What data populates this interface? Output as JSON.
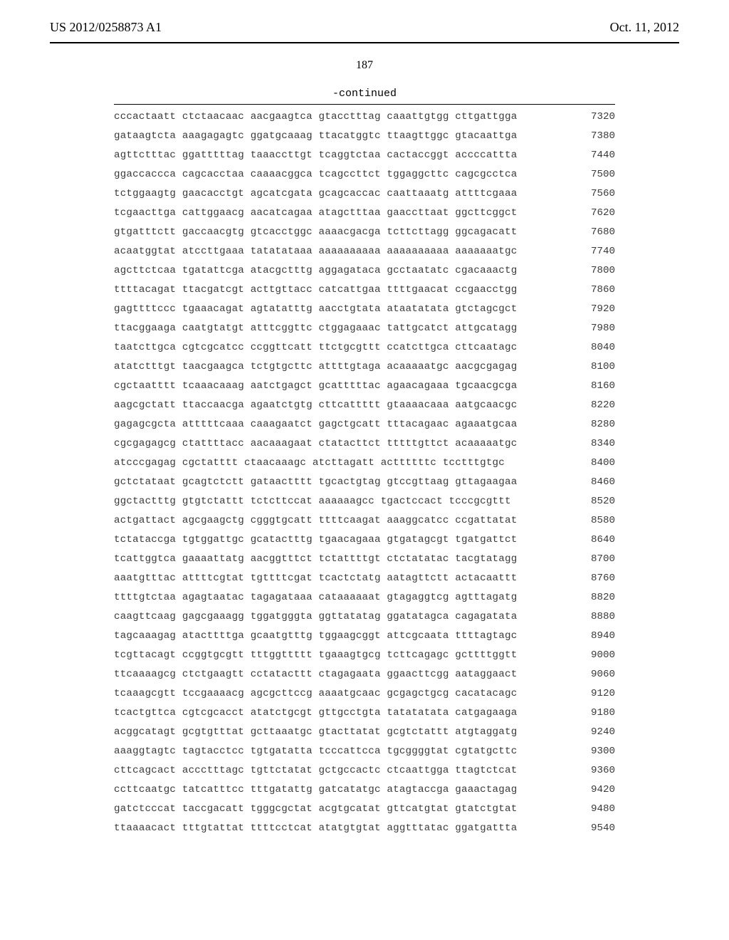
{
  "header": {
    "pub_number": "US 2012/0258873 A1",
    "pub_date": "Oct. 11, 2012"
  },
  "page_number": "187",
  "continued_label": "-continued",
  "sequence": {
    "font_family": "Courier New",
    "font_size_pt": 11,
    "text_color": "#3a3a3a",
    "rule_color": "#000000",
    "rows": [
      {
        "seq": "cccactaatt ctctaacaac aacgaagtca gtacctttag caaattgtgg cttgattgga",
        "pos": 7320
      },
      {
        "seq": "gataagtcta aaagagagtc ggatgcaaag ttacatggtc ttaagttggc gtacaattga",
        "pos": 7380
      },
      {
        "seq": "agttctttac ggatttttag taaaccttgt tcaggtctaa cactaccggt accccattta",
        "pos": 7440
      },
      {
        "seq": "ggaccaccca cagcacctaa caaaacggca tcagccttct tggaggcttc cagcgcctca",
        "pos": 7500
      },
      {
        "seq": "tctggaagtg gaacacctgt agcatcgata gcagcaccac caattaaatg attttcgaaa",
        "pos": 7560
      },
      {
        "seq": "tcgaacttga cattggaacg aacatcagaa atagctttaa gaaccttaat ggcttcggct",
        "pos": 7620
      },
      {
        "seq": "gtgatttctt gaccaacgtg gtcacctggc aaaacgacga tcttcttagg ggcagacatt",
        "pos": 7680
      },
      {
        "seq": "acaatggtat atccttgaaa tatatataaa aaaaaaaaaa aaaaaaaaaa aaaaaaatgc",
        "pos": 7740
      },
      {
        "seq": "agcttctcaa tgatattcga atacgctttg aggagataca gcctaatatc cgacaaactg",
        "pos": 7800
      },
      {
        "seq": "ttttacagat ttacgatcgt acttgttacc catcattgaa ttttgaacat ccgaacctgg",
        "pos": 7860
      },
      {
        "seq": "gagttttccc tgaaacagat agtatatttg aacctgtata ataatatata gtctagcgct",
        "pos": 7920
      },
      {
        "seq": "ttacggaaga caatgtatgt atttcggttc ctggagaaac tattgcatct attgcatagg",
        "pos": 7980
      },
      {
        "seq": "taatcttgca cgtcgcatcc ccggttcatt ttctgcgttt ccatcttgca cttcaatagc",
        "pos": 8040
      },
      {
        "seq": "atatctttgt taacgaagca tctgtgcttc attttgtaga acaaaaatgc aacgcgagag",
        "pos": 8100
      },
      {
        "seq": "cgctaatttt tcaaacaaag aatctgagct gcatttttac agaacagaaa tgcaacgcga",
        "pos": 8160
      },
      {
        "seq": "aagcgctatt ttaccaacga agaatctgtg cttcattttt gtaaaacaaa aatgcaacgc",
        "pos": 8220
      },
      {
        "seq": "gagagcgcta atttttcaaa caaagaatct gagctgcatt tttacagaac agaaatgcaa",
        "pos": 8280
      },
      {
        "seq": "cgcgagagcg ctattttacc aacaaagaat ctatacttct tttttgttct acaaaaatgc",
        "pos": 8340
      },
      {
        "seq": "atcccgagag cgctatttt ctaacaaagc atcttagatt acttttttc tcctttgtgc",
        "pos": 8400
      },
      {
        "seq": "gctctataat gcagtctctt gataactttt tgcactgtag gtccgttaag gttagaagaa",
        "pos": 8460
      },
      {
        "seq": "ggctactttg gtgtctattt tctcttccat aaaaaagcc tgactccact tcccgcgttt",
        "pos": 8520
      },
      {
        "seq": "actgattact agcgaagctg cgggtgcatt ttttcaagat aaaggcatcc ccgattatat",
        "pos": 8580
      },
      {
        "seq": "tctataccga tgtggattgc gcatactttg tgaacagaaa gtgatagcgt tgatgattct",
        "pos": 8640
      },
      {
        "seq": "tcattggtca gaaaattatg aacggtttct tctattttgt ctctatatac tacgtatagg",
        "pos": 8700
      },
      {
        "seq": "aaatgtttac attttcgtat tgttttcgat tcactctatg aatagttctt actacaattt",
        "pos": 8760
      },
      {
        "seq": "ttttgtctaa agagtaatac tagagataaa cataaaaaat gtagaggtcg agtttagatg",
        "pos": 8820
      },
      {
        "seq": "caagttcaag gagcgaaagg tggatgggta ggttatatag ggatatagca cagagatata",
        "pos": 8880
      },
      {
        "seq": "tagcaaagag atacttttga gcaatgtttg tggaagcggt attcgcaata ttttagtagc",
        "pos": 8940
      },
      {
        "seq": "tcgttacagt ccggtgcgtt tttggttttt tgaaagtgcg tcttcagagc gcttttggtt",
        "pos": 9000
      },
      {
        "seq": "ttcaaaagcg ctctgaagtt cctatacttt ctagagaata ggaacttcgg aataggaact",
        "pos": 9060
      },
      {
        "seq": "tcaaagcgtt tccgaaaacg agcgcttccg aaaatgcaac gcgagctgcg cacatacagc",
        "pos": 9120
      },
      {
        "seq": "tcactgttca cgtcgcacct atatctgcgt gttgcctgta tatatatata catgagaaga",
        "pos": 9180
      },
      {
        "seq": "acggcatagt gcgtgtttat gcttaaatgc gtacttatat gcgtctattt atgtaggatg",
        "pos": 9240
      },
      {
        "seq": "aaaggtagtc tagtacctcc tgtgatatta tcccattcca tgcggggtat cgtatgcttc",
        "pos": 9300
      },
      {
        "seq": "cttcagcact accctttagc tgttctatat gctgccactc ctcaattgga ttagtctcat",
        "pos": 9360
      },
      {
        "seq": "ccttcaatgc tatcatttcc tttgatattg gatcatatgc atagtaccga gaaactagag",
        "pos": 9420
      },
      {
        "seq": "gatctcccat taccgacatt tgggcgctat acgtgcatat gttcatgtat gtatctgtat",
        "pos": 9480
      },
      {
        "seq": "ttaaaacact tttgtattat ttttcctcat atatgtgtat aggtttatac ggatgattta",
        "pos": 9540
      }
    ]
  }
}
